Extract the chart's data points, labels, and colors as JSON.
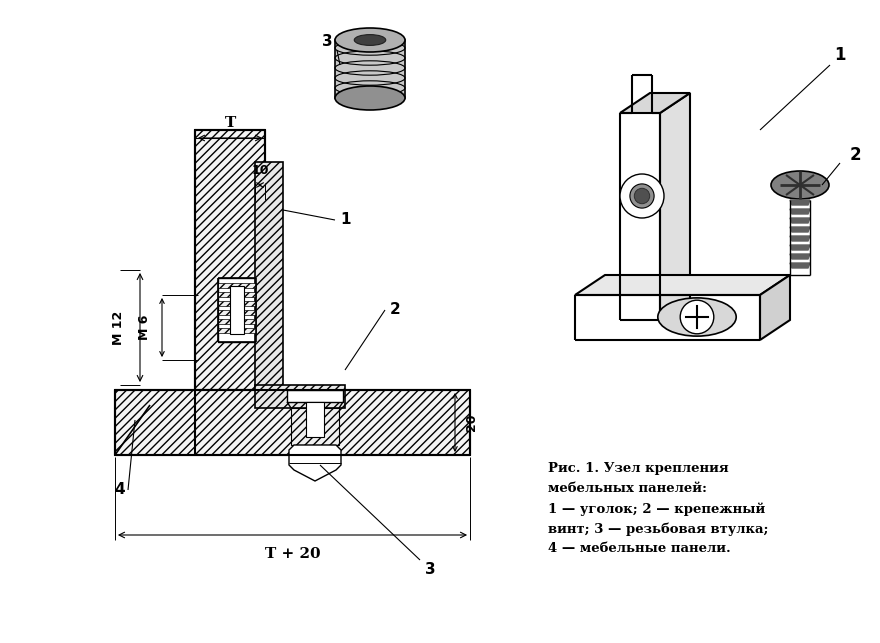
{
  "bg_color": "#ffffff",
  "caption_title": "Рис. 1. Узел крепления",
  "caption_line2": "мебельных панелей:",
  "caption_line3": "1 — уголок; 2 — крепежный",
  "caption_line4": "винт; 3 — резьбовая втулка;",
  "caption_line5": "4 — мебельные панели.",
  "dim_T_label": "T",
  "dim_10": "10",
  "dim_M12": "М 12",
  "dim_M6": "М 6",
  "dim_20": "20",
  "dim_T20": "T + 20",
  "label_1": "1",
  "label_2": "2",
  "label_3": "3",
  "label_4": "4",
  "hatch_color": "#000000",
  "line_color": "#000000",
  "hatch_bg": "#ffffff"
}
